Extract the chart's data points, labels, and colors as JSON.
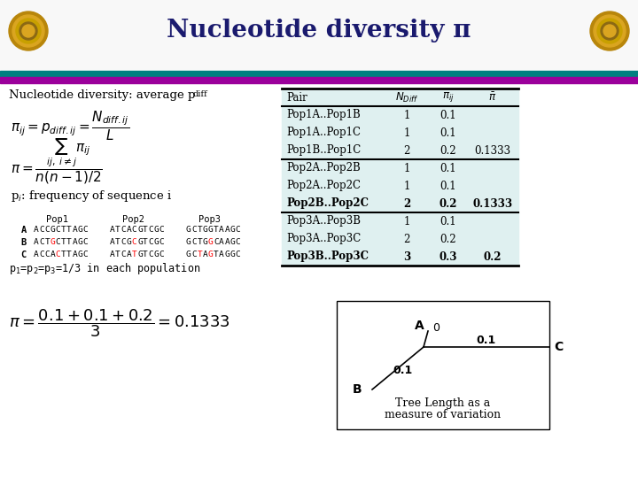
{
  "title": "Nucleotide diversity π",
  "title_color": "#1a1a6e",
  "bg_color": "#ffffff",
  "header_bar1_color": "#008080",
  "header_bar2_color": "#9b009b",
  "table_rows": [
    [
      "Pop1A..Pop1B",
      "1",
      "0.1",
      ""
    ],
    [
      "Pop1A..Pop1C",
      "1",
      "0.1",
      ""
    ],
    [
      "Pop1B..Pop1C",
      "2",
      "0.2",
      "0.1333"
    ],
    [
      "Pop2A..Pop2B",
      "1",
      "0.1",
      ""
    ],
    [
      "Pop2A..Pop2C",
      "1",
      "0.1",
      ""
    ],
    [
      "Pop2B..Pop2C",
      "2",
      "0.2",
      "0.1333"
    ],
    [
      "Pop3A..Pop3B",
      "1",
      "0.1",
      ""
    ],
    [
      "Pop3A..Pop3C",
      "2",
      "0.2",
      ""
    ],
    [
      "Pop3B..Pop3C",
      "3",
      "0.3",
      "0.2"
    ]
  ],
  "table_bg_color": "#dff0f0",
  "table_separator_rows": [
    2,
    5
  ],
  "bold_rows": [
    5,
    8
  ],
  "seq_data": [
    [
      "A",
      "ACCGCTTAGC",
      "ATCACGTCGC",
      "GCTGGTAAGC"
    ],
    [
      "B",
      "ACTGCTTAGC",
      "ATCGCGTCGC",
      "GCTGGCAAGC"
    ],
    [
      "C",
      "ACCACTTAGC",
      "ATCATGTCGC",
      "GCTAGTAGGC"
    ]
  ],
  "diff_chars": {
    "1_0": [
      3
    ],
    "1_1": [
      4
    ],
    "1_2": [
      4
    ],
    "2_0": [
      4
    ],
    "2_1": [
      4
    ],
    "2_2": [
      2,
      4
    ]
  }
}
